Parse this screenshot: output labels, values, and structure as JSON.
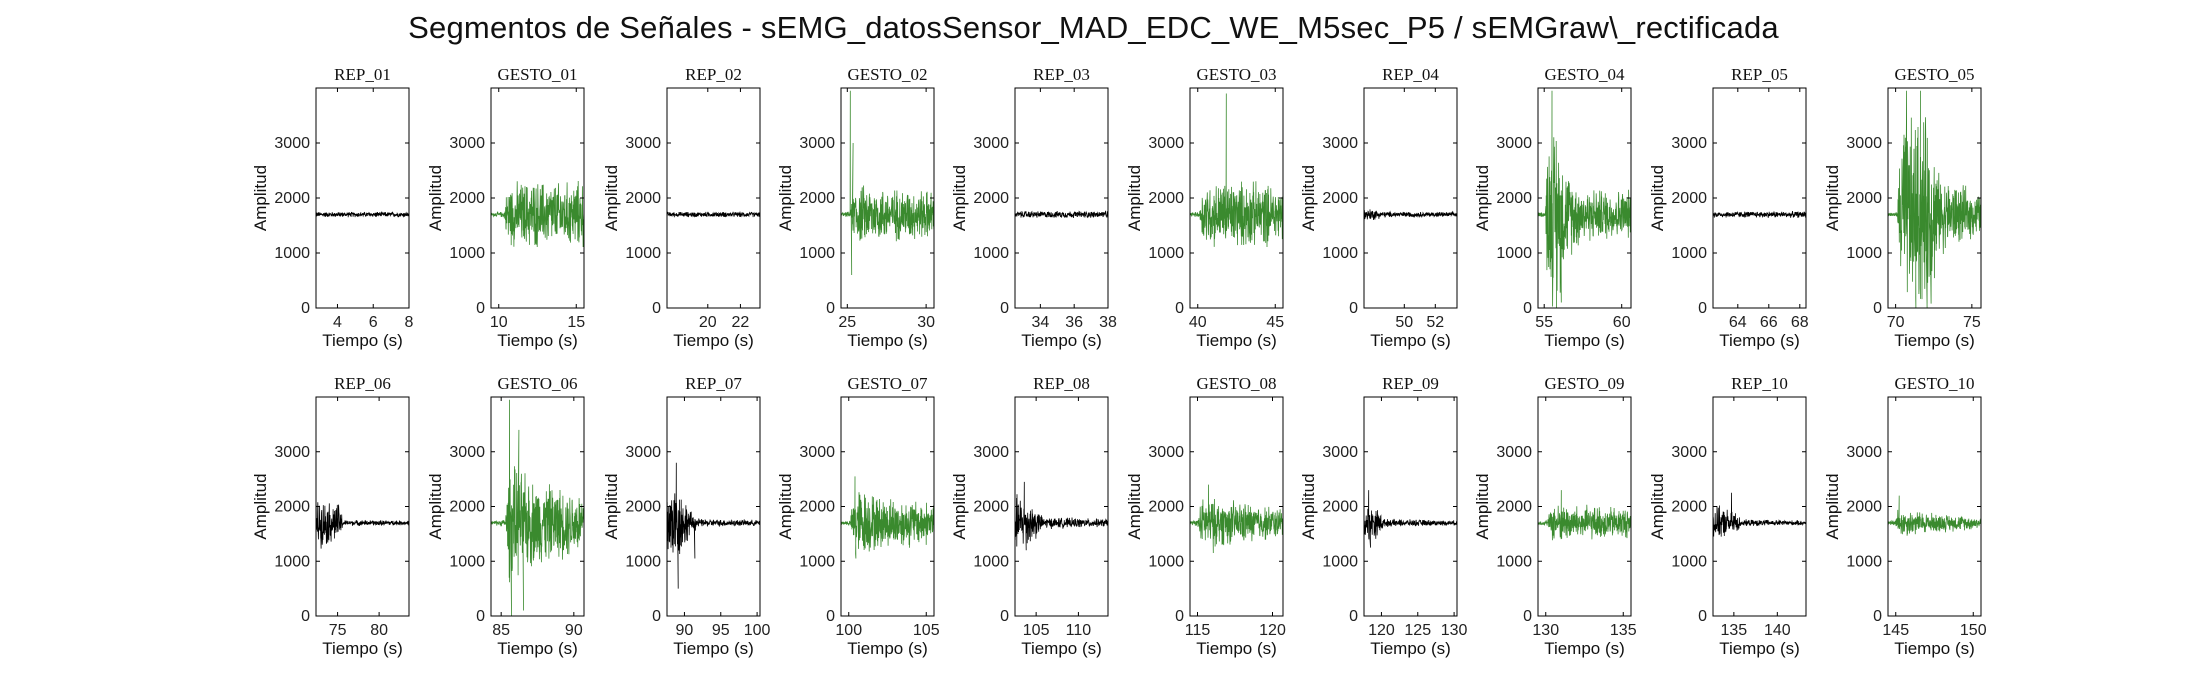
{
  "title": "Segmentos de Señales - sEMG_datosSensor_MAD_EDC_WE_M5sec_P5 / sEMGraw\\_rectificada",
  "colors": {
    "rep": "#000000",
    "gesto": "#3a8a2e",
    "axes": "#000000"
  },
  "chart_data": [
    {
      "type": "line",
      "title": "REP_01",
      "xlabel": "Tiempo (s)",
      "ylabel": "Amplitud",
      "xlim": [
        2.8,
        8
      ],
      "ylim": [
        0,
        4000
      ],
      "xticks": [
        4,
        6,
        8
      ],
      "yticks": [
        0,
        1000,
        2000,
        3000
      ],
      "series": [
        {
          "color": "rep",
          "baseline": 1700,
          "profile": [
            [
              0,
              55
            ],
            [
              1,
              55
            ]
          ]
        }
      ]
    },
    {
      "type": "line",
      "title": "GESTO_01",
      "xlabel": "Tiempo (s)",
      "ylabel": "Amplitud",
      "xlim": [
        9.5,
        15.5
      ],
      "ylim": [
        0,
        4000
      ],
      "xticks": [
        10,
        15
      ],
      "yticks": [
        0,
        1000,
        2000,
        3000
      ],
      "series": [
        {
          "color": "gesto",
          "baseline": 1700,
          "profile": [
            [
              0,
              40
            ],
            [
              0.14,
              60
            ],
            [
              0.18,
              650
            ],
            [
              0.45,
              700
            ],
            [
              0.75,
              650
            ],
            [
              1,
              700
            ]
          ]
        }
      ]
    },
    {
      "type": "line",
      "title": "REP_02",
      "xlabel": "Tiempo (s)",
      "ylabel": "Amplitud",
      "xlim": [
        17.5,
        23.2
      ],
      "ylim": [
        0,
        4000
      ],
      "xticks": [
        20,
        22
      ],
      "yticks": [
        0,
        1000,
        2000,
        3000
      ],
      "series": [
        {
          "color": "rep",
          "baseline": 1700,
          "profile": [
            [
              0,
              55
            ],
            [
              1,
              55
            ]
          ]
        }
      ]
    },
    {
      "type": "line",
      "title": "GESTO_02",
      "xlabel": "Tiempo (s)",
      "ylabel": "Amplitud",
      "xlim": [
        24.6,
        30.5
      ],
      "ylim": [
        0,
        4000
      ],
      "xticks": [
        25,
        30
      ],
      "yticks": [
        0,
        1000,
        2000,
        3000
      ],
      "series": [
        {
          "color": "gesto",
          "baseline": 1700,
          "profile": [
            [
              0,
              40
            ],
            [
              0.1,
              60
            ],
            [
              0.15,
              620
            ],
            [
              0.5,
              550
            ],
            [
              1,
              500
            ]
          ],
          "spikes": [
            [
              0.1,
              3950
            ],
            [
              0.115,
              600
            ],
            [
              0.13,
              3000
            ]
          ]
        }
      ]
    },
    {
      "type": "line",
      "title": "REP_03",
      "xlabel": "Tiempo (s)",
      "ylabel": "Amplitud",
      "xlim": [
        32.5,
        38
      ],
      "ylim": [
        0,
        4000
      ],
      "xticks": [
        34,
        36,
        38
      ],
      "yticks": [
        0,
        1000,
        2000,
        3000
      ],
      "series": [
        {
          "color": "rep",
          "baseline": 1700,
          "profile": [
            [
              0,
              70
            ],
            [
              1,
              70
            ]
          ]
        }
      ]
    },
    {
      "type": "line",
      "title": "GESTO_03",
      "xlabel": "Tiempo (s)",
      "ylabel": "Amplitud",
      "xlim": [
        39.5,
        45.5
      ],
      "ylim": [
        0,
        4000
      ],
      "xticks": [
        40,
        45
      ],
      "yticks": [
        0,
        1000,
        2000,
        3000
      ],
      "series": [
        {
          "color": "gesto",
          "baseline": 1700,
          "profile": [
            [
              0,
              40
            ],
            [
              0.1,
              60
            ],
            [
              0.14,
              650
            ],
            [
              0.5,
              700
            ],
            [
              1,
              600
            ]
          ],
          "spikes": [
            [
              0.39,
              3900
            ]
          ]
        }
      ]
    },
    {
      "type": "line",
      "title": "REP_04",
      "xlabel": "Tiempo (s)",
      "ylabel": "Amplitud",
      "xlim": [
        47.4,
        53.4
      ],
      "ylim": [
        0,
        4000
      ],
      "xticks": [
        50,
        52
      ],
      "yticks": [
        0,
        1000,
        2000,
        3000
      ],
      "series": [
        {
          "color": "rep",
          "baseline": 1700,
          "profile": [
            [
              0,
              120
            ],
            [
              0.1,
              120
            ],
            [
              0.2,
              60
            ],
            [
              1,
              50
            ]
          ]
        }
      ]
    },
    {
      "type": "line",
      "title": "GESTO_04",
      "xlabel": "Tiempo (s)",
      "ylabel": "Amplitud",
      "xlim": [
        54.6,
        60.6
      ],
      "ylim": [
        0,
        4000
      ],
      "xticks": [
        55,
        60
      ],
      "yticks": [
        0,
        1000,
        2000,
        3000
      ],
      "series": [
        {
          "color": "gesto",
          "baseline": 1700,
          "profile": [
            [
              0,
              40
            ],
            [
              0.08,
              60
            ],
            [
              0.1,
              1600
            ],
            [
              0.2,
              1900
            ],
            [
              0.3,
              900
            ],
            [
              0.5,
              550
            ],
            [
              1,
              500
            ]
          ],
          "spikes": [
            [
              0.15,
              3950
            ],
            [
              0.2,
              0
            ],
            [
              0.25,
              100
            ]
          ]
        }
      ]
    },
    {
      "type": "line",
      "title": "REP_05",
      "xlabel": "Tiempo (s)",
      "ylabel": "Amplitud",
      "xlim": [
        62.4,
        68.4
      ],
      "ylim": [
        0,
        4000
      ],
      "xticks": [
        64,
        66,
        68
      ],
      "yticks": [
        0,
        1000,
        2000,
        3000
      ],
      "series": [
        {
          "color": "rep",
          "baseline": 1700,
          "profile": [
            [
              0,
              65
            ],
            [
              1,
              65
            ]
          ]
        }
      ]
    },
    {
      "type": "line",
      "title": "GESTO_05",
      "xlabel": "Tiempo (s)",
      "ylabel": "Amplitud",
      "xlim": [
        69.5,
        75.6
      ],
      "ylim": [
        0,
        4000
      ],
      "xticks": [
        70,
        75
      ],
      "yticks": [
        0,
        1000,
        2000,
        3000
      ],
      "series": [
        {
          "color": "gesto",
          "baseline": 1700,
          "profile": [
            [
              0,
              40
            ],
            [
              0.1,
              50
            ],
            [
              0.14,
              2000
            ],
            [
              0.45,
              2000
            ],
            [
              0.55,
              800
            ],
            [
              1,
              400
            ]
          ],
          "spikes": [
            [
              0.2,
              3950
            ],
            [
              0.3,
              0
            ],
            [
              0.35,
              3950
            ],
            [
              0.42,
              0
            ]
          ]
        }
      ]
    },
    {
      "type": "line",
      "title": "REP_06",
      "xlabel": "Tiempo (s)",
      "ylabel": "Amplitud",
      "xlim": [
        72.4,
        83.6
      ],
      "ylim": [
        0,
        4000
      ],
      "xticks": [
        75,
        80
      ],
      "yticks": [
        0,
        1000,
        2000,
        3000
      ],
      "series": [
        {
          "color": "rep",
          "baseline": 1700,
          "profile": [
            [
              0,
              500
            ],
            [
              0.25,
              400
            ],
            [
              0.3,
              60
            ],
            [
              1,
              50
            ]
          ]
        }
      ]
    },
    {
      "type": "line",
      "title": "GESTO_06",
      "xlabel": "Tiempo (s)",
      "ylabel": "Amplitud",
      "xlim": [
        84.3,
        90.7
      ],
      "ylim": [
        0,
        4000
      ],
      "xticks": [
        85,
        90
      ],
      "yticks": [
        0,
        1000,
        2000,
        3000
      ],
      "series": [
        {
          "color": "gesto",
          "baseline": 1700,
          "profile": [
            [
              0,
              40
            ],
            [
              0.15,
              80
            ],
            [
              0.2,
              1200
            ],
            [
              0.45,
              900
            ],
            [
              0.7,
              750
            ],
            [
              1,
              650
            ]
          ],
          "spikes": [
            [
              0.2,
              3950
            ],
            [
              0.22,
              0
            ],
            [
              0.3,
              3400
            ],
            [
              0.35,
              100
            ]
          ]
        }
      ]
    },
    {
      "type": "line",
      "title": "REP_07",
      "xlabel": "Tiempo (s)",
      "ylabel": "Amplitud",
      "xlim": [
        87.6,
        100.4
      ],
      "ylim": [
        0,
        4000
      ],
      "xticks": [
        90,
        95,
        100
      ],
      "yticks": [
        0,
        1000,
        2000,
        3000
      ],
      "series": [
        {
          "color": "rep",
          "baseline": 1700,
          "profile": [
            [
              0,
              900
            ],
            [
              0.15,
              700
            ],
            [
              0.25,
              250
            ],
            [
              0.35,
              80
            ],
            [
              1,
              60
            ]
          ],
          "spikes": [
            [
              0.1,
              2800
            ],
            [
              0.12,
              500
            ],
            [
              0.3,
              1050
            ]
          ]
        }
      ]
    },
    {
      "type": "line",
      "title": "GESTO_07",
      "xlabel": "Tiempo (s)",
      "ylabel": "Amplitud",
      "xlim": [
        99.5,
        105.5
      ],
      "ylim": [
        0,
        4000
      ],
      "xticks": [
        100,
        105
      ],
      "yticks": [
        0,
        1000,
        2000,
        3000
      ],
      "series": [
        {
          "color": "gesto",
          "baseline": 1700,
          "profile": [
            [
              0,
              40
            ],
            [
              0.1,
              60
            ],
            [
              0.15,
              800
            ],
            [
              0.4,
              550
            ],
            [
              1,
              450
            ]
          ],
          "spikes": [
            [
              0.15,
              2550
            ],
            [
              0.16,
              1050
            ]
          ]
        }
      ]
    },
    {
      "type": "line",
      "title": "REP_08",
      "xlabel": "Tiempo (s)",
      "ylabel": "Amplitud",
      "xlim": [
        102.5,
        113.5
      ],
      "ylim": [
        0,
        4000
      ],
      "xticks": [
        105,
        110
      ],
      "yticks": [
        0,
        1000,
        2000,
        3000
      ],
      "series": [
        {
          "color": "rep",
          "baseline": 1700,
          "profile": [
            [
              0,
              600
            ],
            [
              0.2,
              400
            ],
            [
              0.3,
              120
            ],
            [
              1,
              80
            ]
          ],
          "spikes": [
            [
              0.1,
              2450
            ],
            [
              0.12,
              1200
            ]
          ]
        }
      ]
    },
    {
      "type": "line",
      "title": "GESTO_08",
      "xlabel": "Tiempo (s)",
      "ylabel": "Amplitud",
      "xlim": [
        114.5,
        120.7
      ],
      "ylim": [
        0,
        4000
      ],
      "xticks": [
        115,
        120
      ],
      "yticks": [
        0,
        1000,
        2000,
        3000
      ],
      "series": [
        {
          "color": "gesto",
          "baseline": 1700,
          "profile": [
            [
              0,
              40
            ],
            [
              0.08,
              60
            ],
            [
              0.12,
              500
            ],
            [
              0.5,
              450
            ],
            [
              1,
              300
            ]
          ],
          "spikes": [
            [
              0.2,
              2400
            ],
            [
              0.25,
              1150
            ]
          ]
        }
      ]
    },
    {
      "type": "line",
      "title": "REP_09",
      "xlabel": "Tiempo (s)",
      "ylabel": "Amplitud",
      "xlim": [
        117.6,
        130.4
      ],
      "ylim": [
        0,
        4000
      ],
      "xticks": [
        120,
        125,
        130
      ],
      "yticks": [
        0,
        1000,
        2000,
        3000
      ],
      "series": [
        {
          "color": "rep",
          "baseline": 1700,
          "profile": [
            [
              0,
              400
            ],
            [
              0.15,
              300
            ],
            [
              0.22,
              80
            ],
            [
              1,
              50
            ]
          ],
          "spikes": [
            [
              0.05,
              2300
            ],
            [
              0.07,
              1250
            ]
          ]
        }
      ]
    },
    {
      "type": "line",
      "title": "GESTO_09",
      "xlabel": "Tiempo (s)",
      "ylabel": "Amplitud",
      "xlim": [
        129.5,
        135.5
      ],
      "ylim": [
        0,
        4000
      ],
      "xticks": [
        130,
        135
      ],
      "yticks": [
        0,
        1000,
        2000,
        3000
      ],
      "series": [
        {
          "color": "gesto",
          "baseline": 1700,
          "profile": [
            [
              0,
              40
            ],
            [
              0.1,
              60
            ],
            [
              0.15,
              400
            ],
            [
              0.5,
              350
            ],
            [
              1,
              320
            ]
          ],
          "spikes": [
            [
              0.25,
              2300
            ]
          ]
        }
      ]
    },
    {
      "type": "line",
      "title": "REP_10",
      "xlabel": "Tiempo (s)",
      "ylabel": "Amplitud",
      "xlim": [
        132.6,
        143.3
      ],
      "ylim": [
        0,
        4000
      ],
      "xticks": [
        135,
        140
      ],
      "yticks": [
        0,
        1000,
        2000,
        3000
      ],
      "series": [
        {
          "color": "rep",
          "baseline": 1700,
          "profile": [
            [
              0,
              350
            ],
            [
              0.25,
              250
            ],
            [
              0.3,
              70
            ],
            [
              1,
              50
            ]
          ],
          "spikes": [
            [
              0.2,
              2250
            ]
          ]
        }
      ]
    },
    {
      "type": "line",
      "title": "GESTO_10",
      "xlabel": "Tiempo (s)",
      "ylabel": "Amplitud",
      "xlim": [
        144.5,
        150.5
      ],
      "ylim": [
        0,
        4000
      ],
      "xticks": [
        145,
        150
      ],
      "yticks": [
        0,
        1000,
        2000,
        3000
      ],
      "series": [
        {
          "color": "gesto",
          "baseline": 1700,
          "profile": [
            [
              0,
              40
            ],
            [
              0.08,
              60
            ],
            [
              0.1,
              300
            ],
            [
              0.5,
              200
            ],
            [
              1,
              120
            ]
          ],
          "spikes": [
            [
              0.12,
              2200
            ]
          ]
        }
      ]
    }
  ]
}
